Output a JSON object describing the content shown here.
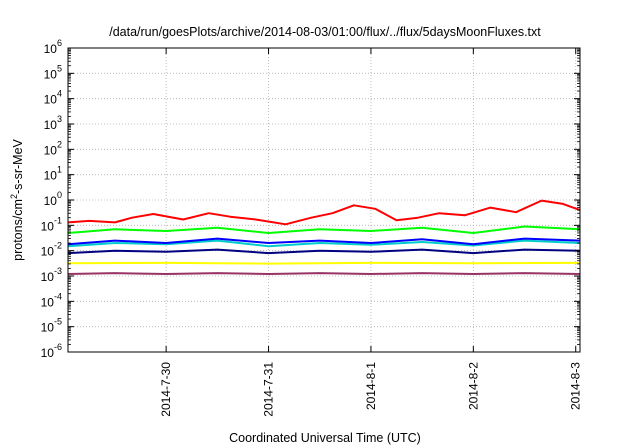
{
  "chart_data": {
    "type": "line",
    "title": "/data/run/goesPlots/archive/2014-08-03/01:00/flux/../flux/5daysMoonFluxes.txt",
    "xlabel": "Coordinated Universal Time (UTC)",
    "ylabel": {
      "pre": "protons/cm",
      "sup": "2",
      "post": "-s-sr-MeV"
    },
    "y_scale": "log",
    "ylim": [
      1e-06,
      1000000.0
    ],
    "xlim": [
      "2014-07-29T01:00",
      "2014-08-03T01:00"
    ],
    "grid": true,
    "y_ticks": [
      {
        "value": 1e-06,
        "base": "10",
        "exp": "-6"
      },
      {
        "value": 1e-05,
        "base": "10",
        "exp": "-5"
      },
      {
        "value": 0.0001,
        "base": "10",
        "exp": "-4"
      },
      {
        "value": 0.001,
        "base": "10",
        "exp": "-3"
      },
      {
        "value": 0.01,
        "base": "10",
        "exp": "-2"
      },
      {
        "value": 0.1,
        "base": "10",
        "exp": "-1"
      },
      {
        "value": 1.0,
        "base": "10",
        "exp": "0"
      },
      {
        "value": 10.0,
        "base": "10",
        "exp": "1"
      },
      {
        "value": 100.0,
        "base": "10",
        "exp": "2"
      },
      {
        "value": 1000.0,
        "base": "10",
        "exp": "3"
      },
      {
        "value": 10000.0,
        "base": "10",
        "exp": "4"
      },
      {
        "value": 100000.0,
        "base": "10",
        "exp": "5"
      },
      {
        "value": 1000000.0,
        "base": "10",
        "exp": "6"
      }
    ],
    "x_ticks": [
      {
        "value": "2014-07-30T00:00",
        "label": "2014-7-30"
      },
      {
        "value": "2014-07-31T00:00",
        "label": "2014-7-31"
      },
      {
        "value": "2014-08-01T00:00",
        "label": "2014-8-1"
      },
      {
        "value": "2014-08-02T00:00",
        "label": "2014-8-2"
      },
      {
        "value": "2014-08-03T00:00",
        "label": "2014-8-3"
      }
    ],
    "series": [
      {
        "color": "#ff0000",
        "x": [
          "2014-07-29T01:00",
          "2014-07-29T06:00",
          "2014-07-29T12:00",
          "2014-07-29T16:00",
          "2014-07-29T21:00",
          "2014-07-30T04:00",
          "2014-07-30T10:00",
          "2014-07-30T15:00",
          "2014-07-30T21:00",
          "2014-07-31T04:00",
          "2014-07-31T10:00",
          "2014-07-31T15:00",
          "2014-07-31T20:00",
          "2014-08-01T01:00",
          "2014-08-01T06:00",
          "2014-08-01T11:00",
          "2014-08-01T16:00",
          "2014-08-01T22:00",
          "2014-08-02T04:00",
          "2014-08-02T10:00",
          "2014-08-02T16:00",
          "2014-08-02T21:00",
          "2014-08-03T01:00"
        ],
        "values": [
          0.13,
          0.15,
          0.13,
          0.2,
          0.28,
          0.17,
          0.3,
          0.22,
          0.17,
          0.11,
          0.2,
          0.3,
          0.62,
          0.45,
          0.16,
          0.2,
          0.3,
          0.25,
          0.5,
          0.33,
          0.95,
          0.7,
          0.4
        ]
      },
      {
        "color": "#00ff00",
        "x": [
          "2014-07-29T01:00",
          "2014-07-29T12:00",
          "2014-07-30T00:00",
          "2014-07-30T12:00",
          "2014-07-31T00:00",
          "2014-07-31T12:00",
          "2014-08-01T00:00",
          "2014-08-01T12:00",
          "2014-08-02T00:00",
          "2014-08-02T12:00",
          "2014-08-03T01:00"
        ],
        "values": [
          0.05,
          0.07,
          0.06,
          0.08,
          0.05,
          0.07,
          0.06,
          0.08,
          0.05,
          0.09,
          0.07
        ]
      },
      {
        "color": "#00cccc",
        "x": [
          "2014-07-29T01:00",
          "2014-07-29T12:00",
          "2014-07-30T00:00",
          "2014-07-30T12:00",
          "2014-07-31T00:00",
          "2014-07-31T12:00",
          "2014-08-01T00:00",
          "2014-08-01T12:00",
          "2014-08-02T00:00",
          "2014-08-02T12:00",
          "2014-08-03T01:00"
        ],
        "values": [
          0.015,
          0.02,
          0.018,
          0.025,
          0.015,
          0.02,
          0.017,
          0.022,
          0.016,
          0.025,
          0.02
        ]
      },
      {
        "color": "#0000ff",
        "x": [
          "2014-07-29T01:00",
          "2014-07-29T12:00",
          "2014-07-30T00:00",
          "2014-07-30T12:00",
          "2014-07-31T00:00",
          "2014-07-31T12:00",
          "2014-08-01T00:00",
          "2014-08-01T12:00",
          "2014-08-02T00:00",
          "2014-08-02T12:00",
          "2014-08-03T01:00"
        ],
        "values": [
          0.018,
          0.025,
          0.02,
          0.03,
          0.02,
          0.025,
          0.02,
          0.028,
          0.018,
          0.03,
          0.025
        ]
      },
      {
        "color": "#000080",
        "x": [
          "2014-07-29T01:00",
          "2014-07-29T12:00",
          "2014-07-30T00:00",
          "2014-07-30T12:00",
          "2014-07-31T00:00",
          "2014-07-31T12:00",
          "2014-08-01T00:00",
          "2014-08-01T12:00",
          "2014-08-02T00:00",
          "2014-08-02T12:00",
          "2014-08-03T01:00"
        ],
        "values": [
          0.008,
          0.01,
          0.009,
          0.011,
          0.008,
          0.01,
          0.009,
          0.011,
          0.008,
          0.011,
          0.01
        ]
      },
      {
        "color": "#ffff00",
        "x": [
          "2014-07-29T01:00",
          "2014-07-30T00:00",
          "2014-07-31T00:00",
          "2014-08-01T00:00",
          "2014-08-02T00:00",
          "2014-08-03T01:00"
        ],
        "values": [
          0.0032,
          0.0033,
          0.0031,
          0.0033,
          0.0032,
          0.0033
        ]
      },
      {
        "color": "#993366",
        "x": [
          "2014-07-29T01:00",
          "2014-07-29T12:00",
          "2014-07-30T00:00",
          "2014-07-30T12:00",
          "2014-07-31T00:00",
          "2014-07-31T12:00",
          "2014-08-01T00:00",
          "2014-08-01T12:00",
          "2014-08-02T00:00",
          "2014-08-02T12:00",
          "2014-08-03T01:00"
        ],
        "values": [
          0.0012,
          0.0013,
          0.0012,
          0.0013,
          0.0012,
          0.0013,
          0.0012,
          0.0013,
          0.0012,
          0.0013,
          0.0012
        ]
      }
    ]
  }
}
